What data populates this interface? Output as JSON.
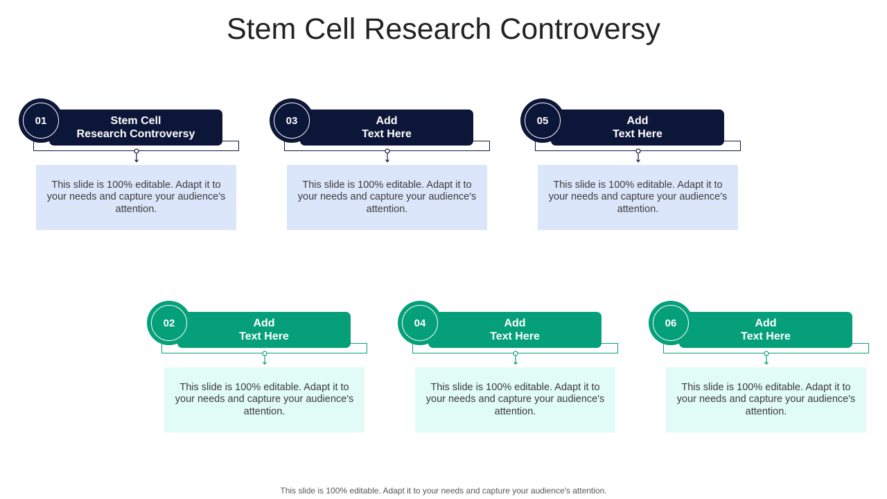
{
  "slide": {
    "title": "Stem Cell Research Controversy",
    "footer": "This slide is 100% editable. Adapt it to your needs and capture your audience's attention."
  },
  "colors": {
    "navy": "#0c1638",
    "teal": "#05a07a",
    "navy_box": "#dce6fb",
    "teal_box": "#e1fbf6"
  },
  "cards": [
    {
      "number": "01",
      "heading": "Stem Cell\nResearch Controversy",
      "text": "This slide is 100% editable. Adapt it to your needs and capture your audience's attention."
    },
    {
      "number": "02",
      "heading": "Add\nText Here",
      "text": "This slide is 100% editable. Adapt it to your needs and capture your audience's attention."
    },
    {
      "number": "03",
      "heading": "Add\nText Here",
      "text": "This slide is 100% editable. Adapt it to your needs and capture your audience's attention."
    },
    {
      "number": "04",
      "heading": "Add\nText Here",
      "text": "This slide is 100% editable. Adapt it to your needs and capture your audience's attention."
    },
    {
      "number": "05",
      "heading": "Add\nText Here",
      "text": "This slide is 100% editable. Adapt it to your needs and capture your audience's attention."
    },
    {
      "number": "06",
      "heading": "Add\nText Here",
      "text": "This slide is 100% editable. Adapt it to your needs and capture your audience's attention."
    }
  ]
}
